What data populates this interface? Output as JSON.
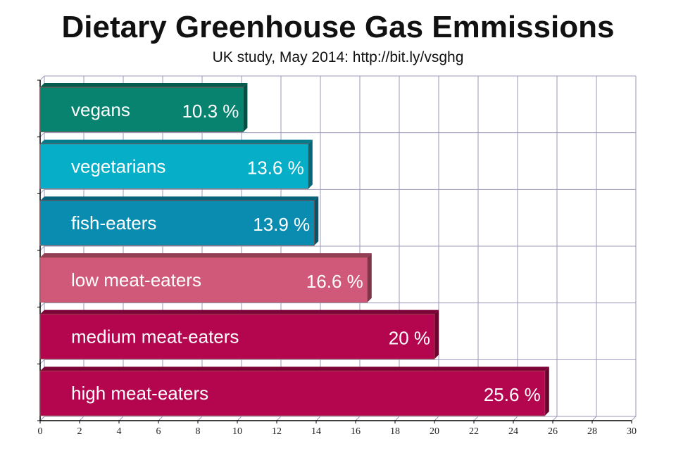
{
  "chart_data": {
    "type": "bar",
    "orientation": "horizontal",
    "title": "Dietary Greenhouse Gas Emmissions",
    "subtitle": "UK study, May 2014: http://bit.ly/vsghg",
    "categories": [
      "vegans",
      "vegetarians",
      "fish-eaters",
      "low meat-eaters",
      "medium meat-eaters",
      "high meat-eaters"
    ],
    "values": [
      10.3,
      13.6,
      13.9,
      16.6,
      20,
      25.6
    ],
    "value_labels": [
      "10.3 %",
      "13.6 %",
      "13.9 %",
      "16.6 %",
      "20 %",
      "25.6 %"
    ],
    "colors": [
      "#07836f",
      "#07aec8",
      "#0a8cb0",
      "#d05878",
      "#b3064f",
      "#b3064f"
    ],
    "xlim": [
      0,
      30
    ],
    "xticks": [
      "0",
      "2",
      "4",
      "6",
      "8",
      "10",
      "12",
      "14",
      "16",
      "18",
      "20",
      "22",
      "24",
      "26",
      "28",
      "30"
    ],
    "xlabel": "",
    "ylabel": "",
    "grid": true
  }
}
